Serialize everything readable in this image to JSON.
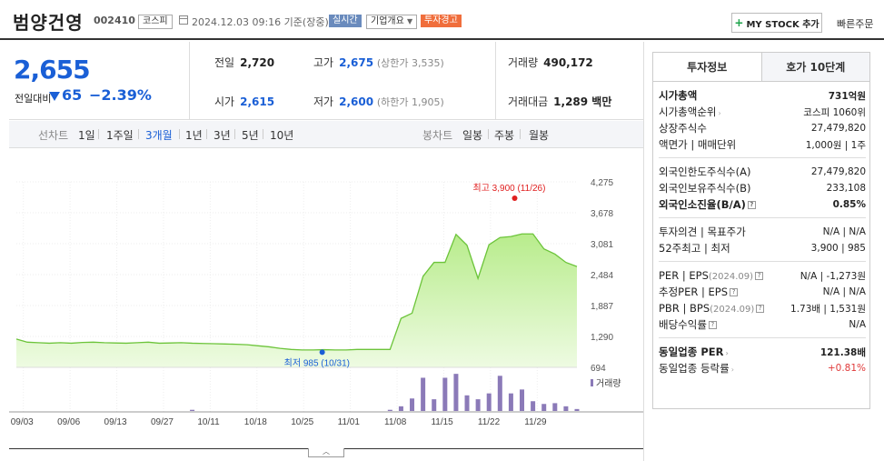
{
  "header": {
    "stock_name": "범양건영",
    "stock_code": "002410",
    "market": "코스피",
    "datetime": "2024.12.03 09:16 기준(장중)",
    "realtime": "실시간",
    "company_overview": "기업개요",
    "warning": "투자경고",
    "mystock_label": "MY STOCK 추가",
    "quick_order": "빠른주문"
  },
  "price": {
    "current": "2,655",
    "diff_label": "전일대비",
    "diff_value": "65",
    "diff_pct": "−2.39%",
    "direction": "down",
    "color": "#1a5fd6",
    "prev_close_label": "전일",
    "prev_close": "2,720",
    "open_label": "시가",
    "open": "2,615",
    "high_label": "고가",
    "high": "2,675",
    "upper_limit": "(상한가 3,535)",
    "low_label": "저가",
    "low": "2,600",
    "lower_limit": "(하한가 1,905)",
    "volume_label": "거래량",
    "volume": "490,172",
    "amount_label": "거래대금",
    "amount": "1,289 백만"
  },
  "period_bar": {
    "line_label": "선차트",
    "periods": [
      "1일",
      "1주일",
      "3개월",
      "1년",
      "3년",
      "5년",
      "10년"
    ],
    "active_period": "3개월",
    "candle_label": "봉차트",
    "candles": [
      "일봉",
      "주봉",
      "월봉"
    ]
  },
  "chart_data": {
    "type": "area",
    "x_ticks": [
      "09/03",
      "09/06",
      "09/13",
      "09/27",
      "10/11",
      "10/18",
      "10/25",
      "11/01",
      "11/08",
      "11/15",
      "11/22",
      "11/29"
    ],
    "y_ticks": [
      "4,275",
      "3,678",
      "3,081",
      "2,484",
      "1,887",
      "1,290",
      "694"
    ],
    "ylim": [
      694,
      4275
    ],
    "max_label": "최고 3,900 (11/26)",
    "min_label": "최저 985 (10/31)",
    "volume_label": "거래량",
    "series": [
      {
        "values": [
          1240,
          1180,
          1170,
          1160,
          1170,
          1160,
          1175,
          1180,
          1170,
          1165,
          1160,
          1170,
          1180,
          1160,
          1165,
          1170,
          1160,
          1155,
          1150,
          1145,
          1140,
          1130,
          1110,
          1090,
          1060,
          1040,
          1030,
          1030,
          1035,
          1030,
          1030,
          1040,
          1040,
          1040,
          1040,
          1640,
          1740,
          2450,
          2720,
          2720,
          3260,
          3050,
          2410,
          3060,
          3200,
          3220,
          3270,
          3270,
          2980,
          2880,
          2720,
          2640
        ]
      }
    ],
    "volume": [
      0,
      0,
      0,
      0,
      0,
      0,
      0,
      0,
      0,
      0,
      0,
      0,
      0,
      0,
      0,
      0,
      0.03,
      0,
      0,
      0,
      0,
      0,
      0,
      0,
      0,
      0,
      0,
      0,
      0,
      0,
      0,
      0,
      0,
      0,
      0.03,
      0.12,
      0.32,
      0.85,
      0.3,
      0.85,
      0.95,
      0.4,
      0.3,
      0.45,
      0.9,
      0.45,
      0.55,
      0.25,
      0.18,
      0.2,
      0.12,
      0.05
    ]
  },
  "info_panel": {
    "tabs": [
      "투자정보",
      "호가 10단계"
    ],
    "groups": [
      [
        {
          "k": "시가총액",
          "v": "731억원",
          "bold": true
        },
        {
          "k": "시가총액순위",
          "v": "코스피 1060위",
          "arrow": true
        },
        {
          "k": "상장주식수",
          "v": "27,479,820"
        },
        {
          "k": "액면가 | 매매단위",
          "v": "1,000원 | 1주"
        }
      ],
      [
        {
          "k": "외국인한도주식수(A)",
          "v": "27,479,820"
        },
        {
          "k": "외국인보유주식수(B)",
          "v": "233,108"
        },
        {
          "k": "외국인소진율(B/A)",
          "v": "0.85%",
          "bold": true,
          "help": true
        }
      ],
      [
        {
          "k": "투자의견 | 목표주가",
          "v": "N/A | N/A"
        },
        {
          "k": "52주최고 | 최저",
          "v": "3,900 | 985"
        }
      ],
      [
        {
          "k": "PER | EPS",
          "tag": "(2024.09)",
          "v": "N/A | -1,273원",
          "help": true
        },
        {
          "k": "추정PER | EPS",
          "v": "N/A | N/A",
          "help": true
        },
        {
          "k": "PBR | BPS",
          "tag": "(2024.09)",
          "v": "1.73배 | 1,531원",
          "help": true
        },
        {
          "k": "배당수익률",
          "v": "N/A",
          "help": true
        }
      ],
      [
        {
          "k": "동일업종 PER",
          "v": "121.38배",
          "bold": true,
          "arrow": true
        },
        {
          "k": "동일업종 등락률",
          "v": "+0.81%",
          "red": true,
          "arrow": true
        }
      ]
    ]
  }
}
